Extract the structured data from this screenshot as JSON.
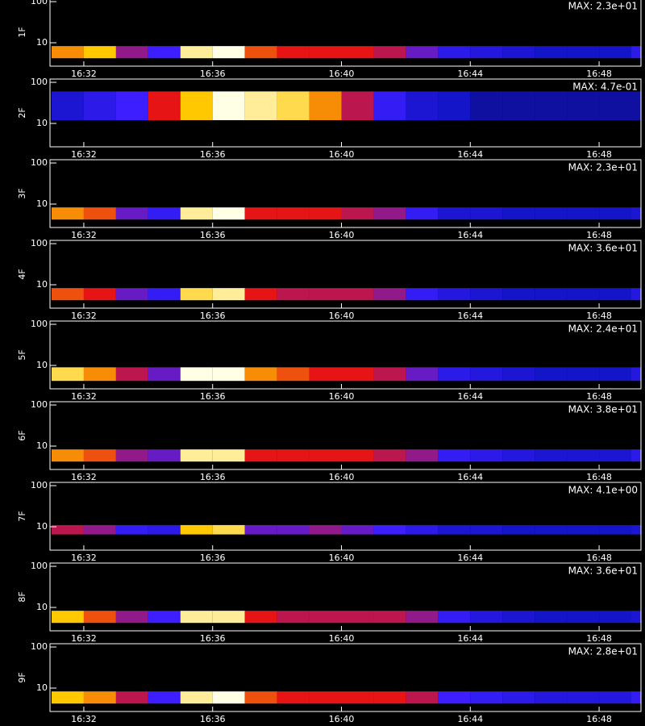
{
  "chart_data": [
    {
      "type": "heatmap",
      "ylabel": "1F",
      "annotation": "MAX: 2.3e+01",
      "ylog": true,
      "ylim": [
        2.7,
        120
      ],
      "yticks": [
        10,
        100
      ],
      "xlim": [
        30.95,
        49.3
      ],
      "xticks": [
        {
          "value": 32,
          "label": "16:32"
        },
        {
          "value": 36,
          "label": "16:36"
        },
        {
          "value": 40,
          "label": "16:40"
        },
        {
          "value": 44,
          "label": "16:44"
        },
        {
          "value": 48,
          "label": "16:48"
        }
      ],
      "band": [
        4.2,
        8.3
      ],
      "x": [
        31,
        32,
        33,
        34,
        35,
        36,
        37,
        38,
        39,
        40,
        41,
        42,
        43,
        44,
        45,
        46,
        47,
        48,
        49
      ],
      "values": [
        0.8,
        0.85,
        0.6,
        0.5,
        0.95,
        1,
        0.75,
        0.7,
        0.7,
        0.7,
        0.65,
        0.55,
        0.4,
        0.35,
        0.3,
        0.25,
        0.25,
        0.25,
        0.4
      ]
    },
    {
      "type": "heatmap",
      "ylabel": "2F",
      "annotation": "MAX: 4.7e-01",
      "ylog": true,
      "ylim": [
        2.7,
        120
      ],
      "yticks": [
        10,
        100
      ],
      "xlim": [
        30.95,
        49.3
      ],
      "xticks": [
        {
          "value": 32,
          "label": "16:32"
        },
        {
          "value": 36,
          "label": "16:36"
        },
        {
          "value": 40,
          "label": "16:40"
        },
        {
          "value": 44,
          "label": "16:44"
        },
        {
          "value": 48,
          "label": "16:48"
        }
      ],
      "band": [
        12,
        60
      ],
      "x": [
        31,
        32,
        33,
        34,
        35,
        36,
        37,
        38,
        39,
        40,
        41,
        42,
        43,
        44,
        45,
        46,
        47,
        48,
        49
      ],
      "values": [
        0.3,
        0.4,
        0.5,
        0.7,
        0.85,
        1,
        0.95,
        0.9,
        0.8,
        0.65,
        0.45,
        0.3,
        0.25,
        0.2,
        0.2,
        0.2,
        0.2,
        0.2,
        0.2
      ]
    },
    {
      "type": "heatmap",
      "ylabel": "3F",
      "annotation": "MAX: 2.3e+01",
      "ylog": true,
      "ylim": [
        2.7,
        120
      ],
      "yticks": [
        10,
        100
      ],
      "xlim": [
        30.95,
        49.3
      ],
      "xticks": [
        {
          "value": 32,
          "label": "16:32"
        },
        {
          "value": 36,
          "label": "16:36"
        },
        {
          "value": 40,
          "label": "16:40"
        },
        {
          "value": 44,
          "label": "16:44"
        },
        {
          "value": 48,
          "label": "16:48"
        }
      ],
      "band": [
        4.2,
        8.3
      ],
      "x": [
        31,
        32,
        33,
        34,
        35,
        36,
        37,
        38,
        39,
        40,
        41,
        42,
        43,
        44,
        45,
        46,
        47,
        48,
        49
      ],
      "values": [
        0.8,
        0.75,
        0.55,
        0.45,
        0.95,
        1,
        0.7,
        0.7,
        0.7,
        0.65,
        0.6,
        0.45,
        0.3,
        0.3,
        0.25,
        0.25,
        0.25,
        0.25,
        0.3
      ]
    },
    {
      "type": "heatmap",
      "ylabel": "4F",
      "annotation": "MAX: 3.6e+01",
      "ylog": true,
      "ylim": [
        2.7,
        120
      ],
      "yticks": [
        10,
        100
      ],
      "xlim": [
        30.95,
        49.3
      ],
      "xticks": [
        {
          "value": 32,
          "label": "16:32"
        },
        {
          "value": 36,
          "label": "16:36"
        },
        {
          "value": 40,
          "label": "16:40"
        },
        {
          "value": 44,
          "label": "16:44"
        },
        {
          "value": 48,
          "label": "16:48"
        }
      ],
      "band": [
        4.2,
        8.3
      ],
      "x": [
        31,
        32,
        33,
        34,
        35,
        36,
        37,
        38,
        39,
        40,
        41,
        42,
        43,
        44,
        45,
        46,
        47,
        48,
        49
      ],
      "values": [
        0.75,
        0.7,
        0.55,
        0.45,
        0.9,
        0.95,
        0.7,
        0.65,
        0.65,
        0.65,
        0.6,
        0.45,
        0.35,
        0.3,
        0.25,
        0.25,
        0.25,
        0.25,
        0.35
      ]
    },
    {
      "type": "heatmap",
      "ylabel": "5F",
      "annotation": "MAX: 2.4e+01",
      "ylog": true,
      "ylim": [
        2.7,
        120
      ],
      "yticks": [
        10,
        100
      ],
      "xlim": [
        30.95,
        49.3
      ],
      "xticks": [
        {
          "value": 32,
          "label": "16:32"
        },
        {
          "value": 36,
          "label": "16:36"
        },
        {
          "value": 40,
          "label": "16:40"
        },
        {
          "value": 44,
          "label": "16:44"
        },
        {
          "value": 48,
          "label": "16:48"
        }
      ],
      "band": [
        4.2,
        9
      ],
      "x": [
        31,
        32,
        33,
        34,
        35,
        36,
        37,
        38,
        39,
        40,
        41,
        42,
        43,
        44,
        45,
        46,
        47,
        48,
        49
      ],
      "values": [
        0.9,
        0.8,
        0.65,
        0.55,
        1,
        1,
        0.8,
        0.75,
        0.7,
        0.7,
        0.65,
        0.55,
        0.4,
        0.35,
        0.3,
        0.25,
        0.25,
        0.25,
        0.35
      ]
    },
    {
      "type": "heatmap",
      "ylabel": "6F",
      "annotation": "MAX: 3.8e+01",
      "ylog": true,
      "ylim": [
        2.7,
        120
      ],
      "yticks": [
        10,
        100
      ],
      "xlim": [
        30.95,
        49.3
      ],
      "xticks": [
        {
          "value": 32,
          "label": "16:32"
        },
        {
          "value": 36,
          "label": "16:36"
        },
        {
          "value": 40,
          "label": "16:40"
        },
        {
          "value": 44,
          "label": "16:44"
        },
        {
          "value": 48,
          "label": "16:48"
        }
      ],
      "band": [
        4.2,
        8.3
      ],
      "x": [
        31,
        32,
        33,
        34,
        35,
        36,
        37,
        38,
        39,
        40,
        41,
        42,
        43,
        44,
        45,
        46,
        47,
        48,
        49
      ],
      "values": [
        0.8,
        0.75,
        0.6,
        0.55,
        0.95,
        0.95,
        0.7,
        0.7,
        0.7,
        0.7,
        0.65,
        0.6,
        0.45,
        0.4,
        0.35,
        0.3,
        0.3,
        0.3,
        0.4
      ]
    },
    {
      "type": "heatmap",
      "ylabel": "7F",
      "annotation": "MAX: 4.1e+00",
      "ylog": true,
      "ylim": [
        2.7,
        120
      ],
      "yticks": [
        10,
        100
      ],
      "xlim": [
        30.95,
        49.3
      ],
      "xticks": [
        {
          "value": 32,
          "label": "16:32"
        },
        {
          "value": 36,
          "label": "16:36"
        },
        {
          "value": 40,
          "label": "16:40"
        },
        {
          "value": 44,
          "label": "16:44"
        },
        {
          "value": 48,
          "label": "16:48"
        }
      ],
      "band": [
        6.5,
        11
      ],
      "x": [
        31,
        32,
        33,
        34,
        35,
        36,
        37,
        38,
        39,
        40,
        41,
        42,
        43,
        44,
        45,
        46,
        47,
        48,
        49
      ],
      "values": [
        0.65,
        0.6,
        0.45,
        0.4,
        0.85,
        0.9,
        0.55,
        0.55,
        0.6,
        0.55,
        0.5,
        0.4,
        0.3,
        0.3,
        0.25,
        0.25,
        0.25,
        0.25,
        0.3
      ]
    },
    {
      "type": "heatmap",
      "ylabel": "8F",
      "annotation": "MAX: 3.6e+01",
      "ylog": true,
      "ylim": [
        2.7,
        120
      ],
      "yticks": [
        10,
        100
      ],
      "xlim": [
        30.95,
        49.3
      ],
      "xticks": [
        {
          "value": 32,
          "label": "16:32"
        },
        {
          "value": 36,
          "label": "16:36"
        },
        {
          "value": 40,
          "label": "16:40"
        },
        {
          "value": 44,
          "label": "16:44"
        },
        {
          "value": 48,
          "label": "16:48"
        }
      ],
      "band": [
        4.2,
        8.3
      ],
      "x": [
        31,
        32,
        33,
        34,
        35,
        36,
        37,
        38,
        39,
        40,
        41,
        42,
        43,
        44,
        45,
        46,
        47,
        48,
        49
      ],
      "values": [
        0.85,
        0.75,
        0.6,
        0.5,
        0.95,
        0.95,
        0.7,
        0.65,
        0.65,
        0.65,
        0.65,
        0.6,
        0.45,
        0.35,
        0.3,
        0.25,
        0.25,
        0.25,
        0.3
      ]
    },
    {
      "type": "heatmap",
      "ylabel": "9F",
      "annotation": "MAX: 2.8e+01",
      "ylog": true,
      "ylim": [
        2.7,
        120
      ],
      "yticks": [
        10,
        100
      ],
      "xlim": [
        30.95,
        49.3
      ],
      "xticks": [
        {
          "value": 32,
          "label": "16:32"
        },
        {
          "value": 36,
          "label": "16:36"
        },
        {
          "value": 40,
          "label": "16:40"
        },
        {
          "value": 44,
          "label": "16:44"
        },
        {
          "value": 48,
          "label": "16:48"
        }
      ],
      "band": [
        4.2,
        8.3
      ],
      "x": [
        31,
        32,
        33,
        34,
        35,
        36,
        37,
        38,
        39,
        40,
        41,
        42,
        43,
        44,
        45,
        46,
        47,
        48,
        49
      ],
      "values": [
        0.85,
        0.8,
        0.65,
        0.5,
        0.95,
        1,
        0.75,
        0.7,
        0.7,
        0.7,
        0.7,
        0.65,
        0.5,
        0.45,
        0.4,
        0.35,
        0.35,
        0.35,
        0.45
      ]
    }
  ]
}
